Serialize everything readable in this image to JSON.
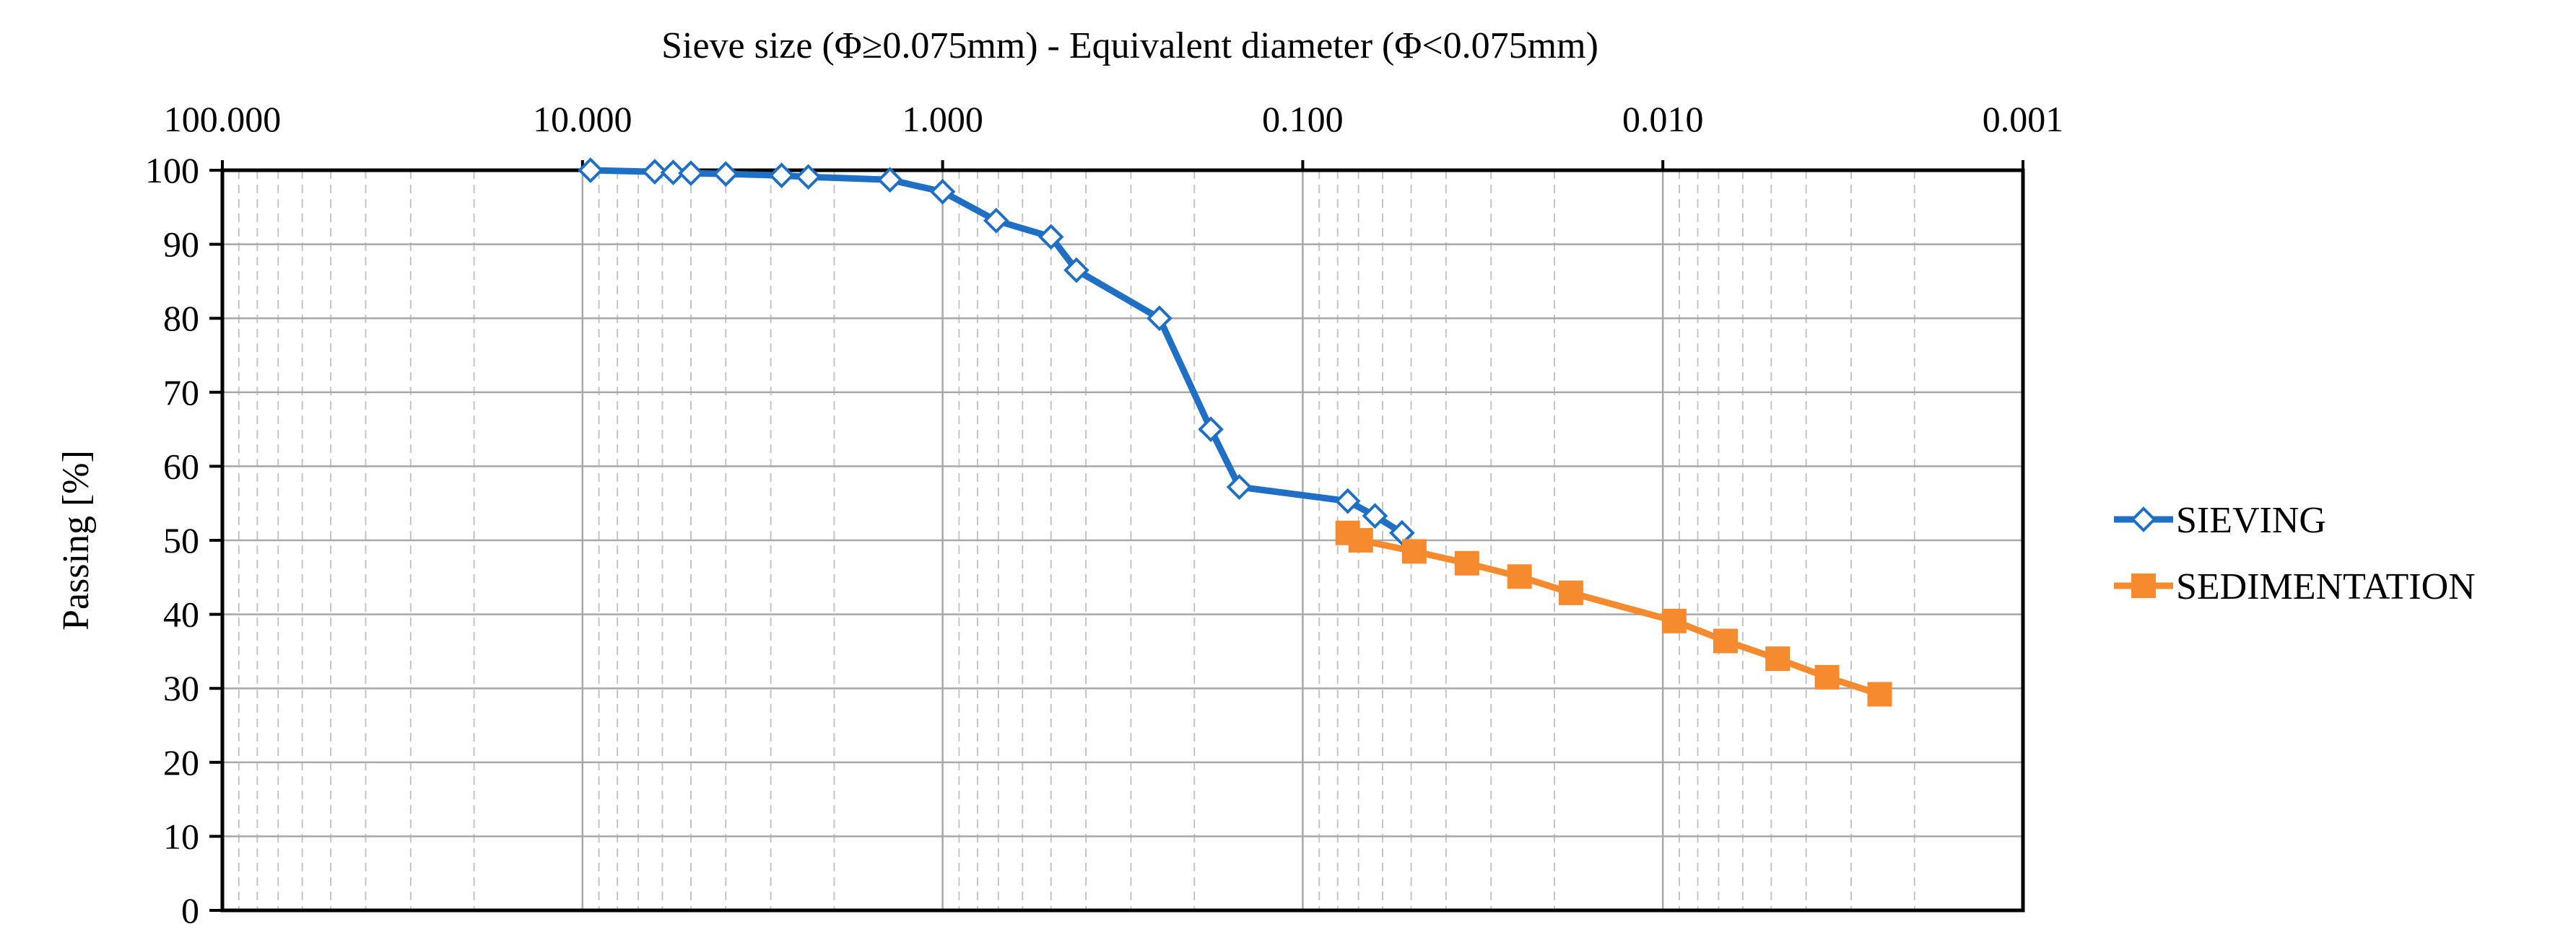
{
  "chart_data": {
    "type": "line",
    "title": "Sieve size (Φ≥0.075mm) - Equivalent diameter (Φ<0.075mm)",
    "xlabel": "Sieve size (Φ≥0.075mm) - Equivalent diameter (Φ<0.075mm)",
    "ylabel": "Passing [%]",
    "x_scale": "log",
    "x_reversed": true,
    "xlim": [
      100,
      0.001
    ],
    "ylim": [
      0,
      100
    ],
    "x_ticks": [
      100,
      10,
      1,
      0.1,
      0.01,
      0.001
    ],
    "x_tick_labels": [
      "100.000",
      "10.000",
      "1.000",
      "0.100",
      "0.010",
      "0.001"
    ],
    "y_ticks": [
      0,
      10,
      20,
      30,
      40,
      50,
      60,
      70,
      80,
      90,
      100
    ],
    "y_tick_labels": [
      "0",
      "10",
      "20",
      "30",
      "40",
      "50",
      "60",
      "70",
      "80",
      "90",
      "100"
    ],
    "grid": true,
    "legend_position": "right",
    "series": [
      {
        "name": "SIEVING",
        "color": "#1F6FC5",
        "marker": "diamond-open",
        "x": [
          9.5,
          6.3,
          5.6,
          5.0,
          4.0,
          2.8,
          2.36,
          1.4,
          1.0,
          0.71,
          0.5,
          0.425,
          0.25,
          0.18,
          0.15,
          0.075,
          0.063,
          0.053
        ],
        "y": [
          100,
          99.8,
          99.7,
          99.6,
          99.5,
          99.3,
          99.1,
          98.7,
          97.1,
          93.2,
          91.0,
          86.5,
          80.0,
          65.0,
          57.2,
          55.3,
          53.3,
          51.0
        ]
      },
      {
        "name": "SEDIMENTATION",
        "color": "#F58A2E",
        "marker": "square",
        "x": [
          0.075,
          0.069,
          0.049,
          0.035,
          0.025,
          0.018,
          0.0093,
          0.0067,
          0.0048,
          0.0035,
          0.0025
        ],
        "y": [
          51.0,
          50.0,
          48.5,
          46.9,
          45.1,
          42.9,
          39.1,
          36.4,
          34.0,
          31.5,
          29.2
        ]
      }
    ]
  }
}
